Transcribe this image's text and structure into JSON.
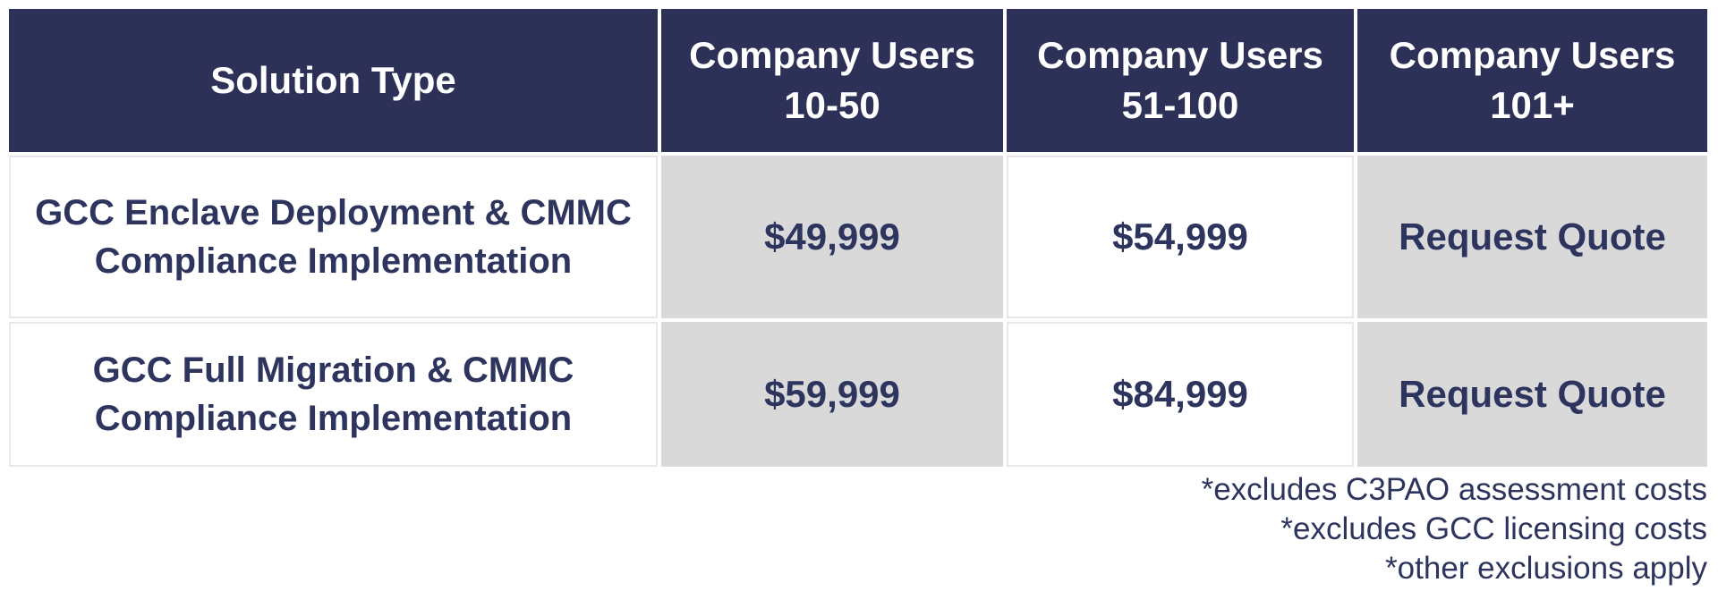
{
  "chart_data": {
    "type": "table",
    "columns": [
      {
        "label": "Solution Type",
        "sub": ""
      },
      {
        "label": "Company Users",
        "sub": "10-50"
      },
      {
        "label": "Company Users",
        "sub": "51-100"
      },
      {
        "label": "Company Users",
        "sub": "101+"
      }
    ],
    "rows": [
      {
        "solution": "GCC Enclave Deployment & CMMC Compliance Implementation",
        "users_10_50": "$49,999",
        "users_51_100": "$54,999",
        "users_101_plus": "Request Quote"
      },
      {
        "solution": "GCC Full Migration & CMMC Compliance Implementation",
        "users_10_50": "$59,999",
        "users_51_100": "$84,999",
        "users_101_plus": "Request Quote"
      }
    ],
    "footnotes": [
      "*excludes C3PAO assessment costs",
      "*excludes GCC licensing costs",
      "*other exclusions apply"
    ]
  },
  "colors": {
    "header_bg": "#2d3157",
    "header_text": "#ffffff",
    "body_text": "#2d355f",
    "shaded_cell": "#d9d9d9",
    "grid_line": "#e7e7e7",
    "page_bg": "#ffffff"
  }
}
